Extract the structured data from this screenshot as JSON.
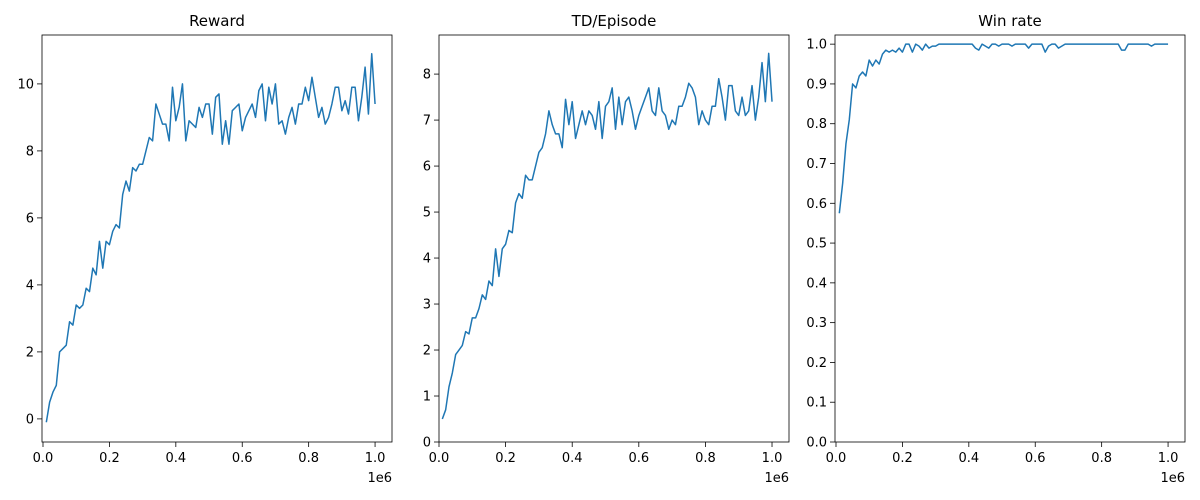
{
  "chart_data": [
    {
      "type": "line",
      "title": "Reward",
      "color": "#1f77b4",
      "x_offset_label": "1e6",
      "x": [
        10000,
        20000,
        30000,
        40000,
        50000,
        60000,
        70000,
        80000,
        90000,
        100000,
        110000,
        120000,
        130000,
        140000,
        150000,
        160000,
        170000,
        180000,
        190000,
        200000,
        210000,
        220000,
        230000,
        240000,
        250000,
        260000,
        270000,
        280000,
        290000,
        300000,
        310000,
        320000,
        330000,
        340000,
        350000,
        360000,
        370000,
        380000,
        390000,
        400000,
        410000,
        420000,
        430000,
        440000,
        450000,
        460000,
        470000,
        480000,
        490000,
        500000,
        510000,
        520000,
        530000,
        540000,
        550000,
        560000,
        570000,
        580000,
        590000,
        600000,
        610000,
        620000,
        630000,
        640000,
        650000,
        660000,
        670000,
        680000,
        690000,
        700000,
        710000,
        720000,
        730000,
        740000,
        750000,
        760000,
        770000,
        780000,
        790000,
        800000,
        810000,
        820000,
        830000,
        840000,
        850000,
        860000,
        870000,
        880000,
        890000,
        900000,
        910000,
        920000,
        930000,
        940000,
        950000,
        960000,
        970000,
        980000,
        990000,
        1000000
      ],
      "values": [
        -0.1,
        0.5,
        0.8,
        1.0,
        2.0,
        2.1,
        2.2,
        2.9,
        2.8,
        3.4,
        3.3,
        3.4,
        3.9,
        3.8,
        4.5,
        4.3,
        5.3,
        4.5,
        5.3,
        5.2,
        5.6,
        5.8,
        5.7,
        6.7,
        7.1,
        6.8,
        7.5,
        7.4,
        7.6,
        7.6,
        8.0,
        8.4,
        8.3,
        9.4,
        9.1,
        8.8,
        8.8,
        8.3,
        9.9,
        8.9,
        9.3,
        10.0,
        8.3,
        8.9,
        8.8,
        8.7,
        9.3,
        9.0,
        9.4,
        9.4,
        8.5,
        9.6,
        9.7,
        8.2,
        8.9,
        8.2,
        9.2,
        9.3,
        9.4,
        8.6,
        9.0,
        9.2,
        9.4,
        9.0,
        9.8,
        10.0,
        8.9,
        9.9,
        9.4,
        10.0,
        8.8,
        8.9,
        8.5,
        9.0,
        9.3,
        8.8,
        9.4,
        9.4,
        9.9,
        9.5,
        10.2,
        9.6,
        9.0,
        9.3,
        8.8,
        9.0,
        9.4,
        9.9,
        9.9,
        9.2,
        9.5,
        9.1,
        9.9,
        9.9,
        8.9,
        9.6,
        10.5,
        9.1,
        10.9,
        9.4
      ],
      "xlim": [
        -3000,
        1051000
      ],
      "xticks": [
        {
          "value": 0,
          "label": "0.0"
        },
        {
          "value": 200000,
          "label": "0.2"
        },
        {
          "value": 400000,
          "label": "0.4"
        },
        {
          "value": 600000,
          "label": "0.6"
        },
        {
          "value": 800000,
          "label": "0.8"
        },
        {
          "value": 1000000,
          "label": "1.0"
        }
      ],
      "ylim": [
        -0.69,
        11.46
      ],
      "yticks": [
        0,
        2,
        4,
        6,
        8,
        10
      ]
    },
    {
      "type": "line",
      "title": "TD/Episode",
      "color": "#1f77b4",
      "x_offset_label": "1e6",
      "x": [
        10000,
        20000,
        30000,
        40000,
        50000,
        60000,
        70000,
        80000,
        90000,
        100000,
        110000,
        120000,
        130000,
        140000,
        150000,
        160000,
        170000,
        180000,
        190000,
        200000,
        210000,
        220000,
        230000,
        240000,
        250000,
        260000,
        270000,
        280000,
        290000,
        300000,
        310000,
        320000,
        330000,
        340000,
        350000,
        360000,
        370000,
        380000,
        390000,
        400000,
        410000,
        420000,
        430000,
        440000,
        450000,
        460000,
        470000,
        480000,
        490000,
        500000,
        510000,
        520000,
        530000,
        540000,
        550000,
        560000,
        570000,
        580000,
        590000,
        600000,
        610000,
        620000,
        630000,
        640000,
        650000,
        660000,
        670000,
        680000,
        690000,
        700000,
        710000,
        720000,
        730000,
        740000,
        750000,
        760000,
        770000,
        780000,
        790000,
        800000,
        810000,
        820000,
        830000,
        840000,
        850000,
        860000,
        870000,
        880000,
        890000,
        900000,
        910000,
        920000,
        930000,
        940000,
        950000,
        960000,
        970000,
        980000,
        990000,
        1000000
      ],
      "values": [
        0.5,
        0.7,
        1.2,
        1.5,
        1.9,
        2.0,
        2.1,
        2.4,
        2.35,
        2.7,
        2.7,
        2.9,
        3.2,
        3.1,
        3.5,
        3.4,
        4.2,
        3.6,
        4.2,
        4.3,
        4.6,
        4.55,
        5.2,
        5.4,
        5.3,
        5.8,
        5.7,
        5.7,
        6.0,
        6.3,
        6.4,
        6.7,
        7.2,
        6.9,
        6.7,
        6.7,
        6.4,
        7.45,
        6.9,
        7.4,
        6.6,
        6.9,
        7.2,
        6.9,
        7.2,
        7.1,
        6.8,
        7.4,
        6.6,
        7.3,
        7.4,
        7.7,
        6.8,
        7.5,
        6.9,
        7.4,
        7.5,
        7.2,
        6.8,
        7.1,
        7.3,
        7.5,
        7.7,
        7.2,
        7.1,
        7.7,
        7.2,
        7.1,
        6.8,
        7.0,
        6.9,
        7.3,
        7.3,
        7.5,
        7.8,
        7.7,
        7.5,
        6.9,
        7.2,
        7.0,
        6.9,
        7.3,
        7.3,
        7.9,
        7.5,
        7.0,
        7.75,
        7.75,
        7.2,
        7.1,
        7.5,
        7.1,
        7.2,
        7.75,
        7.0,
        7.5,
        8.25,
        7.4,
        8.45,
        7.4
      ],
      "xlim": [
        0,
        1051000
      ],
      "xticks": [
        {
          "value": 0,
          "label": "0.0"
        },
        {
          "value": 200000,
          "label": "0.2"
        },
        {
          "value": 400000,
          "label": "0.4"
        },
        {
          "value": 600000,
          "label": "0.6"
        },
        {
          "value": 800000,
          "label": "0.8"
        },
        {
          "value": 1000000,
          "label": "1.0"
        }
      ],
      "ylim": [
        0,
        8.85
      ],
      "yticks": [
        0,
        1,
        2,
        3,
        4,
        5,
        6,
        7,
        8
      ]
    },
    {
      "type": "line",
      "title": "Win rate",
      "color": "#1f77b4",
      "x_offset_label": "1e6",
      "x": [
        10000,
        20000,
        30000,
        40000,
        50000,
        60000,
        70000,
        80000,
        90000,
        100000,
        110000,
        120000,
        130000,
        140000,
        150000,
        160000,
        170000,
        180000,
        190000,
        200000,
        210000,
        220000,
        230000,
        240000,
        250000,
        260000,
        270000,
        280000,
        290000,
        300000,
        310000,
        320000,
        330000,
        340000,
        350000,
        360000,
        370000,
        380000,
        390000,
        400000,
        410000,
        420000,
        430000,
        440000,
        450000,
        460000,
        470000,
        480000,
        490000,
        500000,
        510000,
        520000,
        530000,
        540000,
        550000,
        560000,
        570000,
        580000,
        590000,
        600000,
        610000,
        620000,
        630000,
        640000,
        650000,
        660000,
        670000,
        680000,
        690000,
        700000,
        710000,
        720000,
        730000,
        740000,
        750000,
        760000,
        770000,
        780000,
        790000,
        800000,
        810000,
        820000,
        830000,
        840000,
        850000,
        860000,
        870000,
        880000,
        890000,
        900000,
        910000,
        920000,
        930000,
        940000,
        950000,
        960000,
        970000,
        980000,
        990000,
        1000000
      ],
      "values": [
        0.575,
        0.65,
        0.75,
        0.81,
        0.9,
        0.89,
        0.92,
        0.93,
        0.92,
        0.96,
        0.945,
        0.96,
        0.95,
        0.975,
        0.985,
        0.98,
        0.985,
        0.98,
        0.99,
        0.98,
        1.0,
        1.0,
        0.98,
        1.0,
        0.995,
        0.985,
        1.0,
        0.99,
        0.995,
        0.995,
        1.0,
        1.0,
        1.0,
        1.0,
        1.0,
        1.0,
        1.0,
        1.0,
        1.0,
        1.0,
        1.0,
        0.99,
        0.985,
        1.0,
        0.995,
        0.99,
        1.0,
        1.0,
        0.995,
        1.0,
        1.0,
        1.0,
        0.995,
        1.0,
        1.0,
        1.0,
        1.0,
        0.99,
        1.0,
        1.0,
        1.0,
        1.0,
        0.98,
        0.995,
        1.0,
        1.0,
        0.99,
        0.995,
        1.0,
        1.0,
        1.0,
        1.0,
        1.0,
        1.0,
        1.0,
        1.0,
        1.0,
        1.0,
        1.0,
        1.0,
        1.0,
        1.0,
        1.0,
        1.0,
        1.0,
        0.985,
        0.985,
        1.0,
        1.0,
        1.0,
        1.0,
        1.0,
        1.0,
        1.0,
        0.995,
        1.0,
        1.0,
        1.0,
        1.0,
        1.0
      ],
      "xlim": [
        -3000,
        1051000
      ],
      "xticks": [
        {
          "value": 0,
          "label": "0.0"
        },
        {
          "value": 200000,
          "label": "0.2"
        },
        {
          "value": 400000,
          "label": "0.4"
        },
        {
          "value": 600000,
          "label": "0.6"
        },
        {
          "value": 800000,
          "label": "0.8"
        },
        {
          "value": 1000000,
          "label": "1.0"
        }
      ],
      "ylim": [
        0,
        1.023
      ],
      "yticks": [
        {
          "value": 0,
          "label": "0.0"
        },
        0.1,
        0.2,
        0.3,
        0.4,
        0.5,
        0.6,
        0.7,
        0.8,
        0.9,
        {
          "value": 1,
          "label": "1.0"
        }
      ]
    }
  ]
}
